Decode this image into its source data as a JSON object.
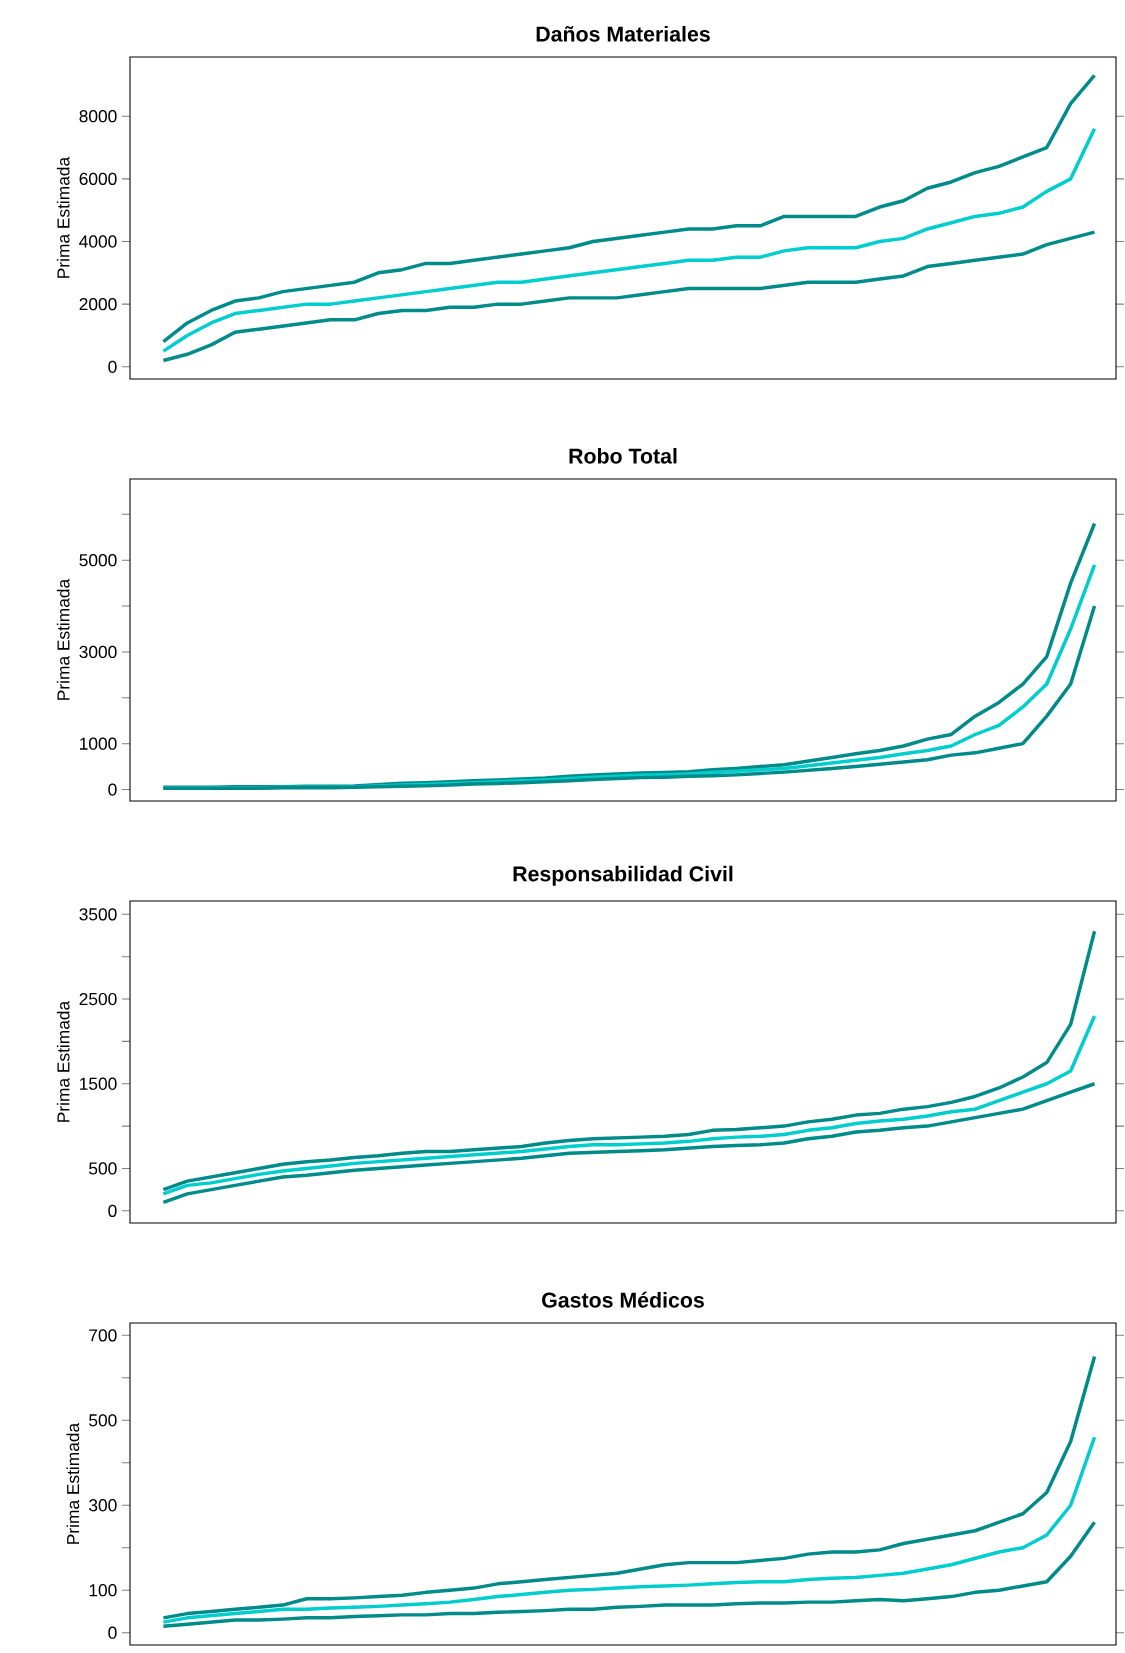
{
  "chart_data": [
    {
      "type": "line",
      "title": "Daños Materiales",
      "ylabel": "Prima Estimada",
      "tick_labels": "y",
      "categories": [
        null,
        null,
        null,
        null,
        null,
        null,
        null,
        null,
        null,
        null,
        null,
        null,
        null,
        null,
        null,
        null,
        null,
        null,
        null,
        null,
        null,
        null,
        null,
        null,
        null,
        null,
        null,
        null,
        null,
        null,
        null,
        null,
        null,
        null,
        null,
        null,
        null,
        null,
        null,
        null
      ],
      "ylim": [
        -390,
        9890
      ],
      "yticks": [
        0,
        2000,
        4000,
        6000,
        8000
      ],
      "series": [
        {
          "color": "#008b8b",
          "values": [
            800,
            1400,
            1800,
            2100,
            2200,
            2400,
            2500,
            2600,
            2700,
            3000,
            3100,
            3300,
            3300,
            3400,
            3500,
            3600,
            3700,
            3800,
            4000,
            4100,
            4200,
            4300,
            4400,
            4400,
            4500,
            4500,
            4800,
            4800,
            4800,
            4800,
            5100,
            5300,
            5700,
            5900,
            6200,
            6400,
            6700,
            7000,
            8400,
            9300
          ]
        },
        {
          "color": "#00cdcd",
          "values": [
            500,
            1000,
            1400,
            1700,
            1800,
            1900,
            2000,
            2000,
            2100,
            2200,
            2300,
            2400,
            2500,
            2600,
            2700,
            2700,
            2800,
            2900,
            3000,
            3100,
            3200,
            3300,
            3400,
            3400,
            3500,
            3500,
            3700,
            3800,
            3800,
            3800,
            4000,
            4100,
            4400,
            4600,
            4800,
            4900,
            5100,
            5600,
            6000,
            7600
          ]
        },
        {
          "color": "#008b8b",
          "values": [
            200,
            400,
            700,
            1100,
            1200,
            1300,
            1400,
            1500,
            1500,
            1700,
            1800,
            1800,
            1900,
            1900,
            2000,
            2000,
            2100,
            2200,
            2200,
            2200,
            2300,
            2400,
            2500,
            2500,
            2500,
            2500,
            2600,
            2700,
            2700,
            2700,
            2800,
            2900,
            3200,
            3300,
            3400,
            3500,
            3600,
            3900,
            4100,
            4300
          ]
        }
      ]
    },
    {
      "type": "line",
      "title": "Robo Total",
      "ylabel": "Prima Estimada",
      "tick_labels": "y",
      "categories": [
        null,
        null,
        null,
        null,
        null,
        null,
        null,
        null,
        null,
        null,
        null,
        null,
        null,
        null,
        null,
        null,
        null,
        null,
        null,
        null,
        null,
        null,
        null,
        null,
        null,
        null,
        null,
        null,
        null,
        null,
        null,
        null,
        null,
        null,
        null,
        null,
        null,
        null,
        null,
        null
      ],
      "ylim": [
        -250,
        6770
      ],
      "yticks": [
        0,
        1000,
        {
          "value": 2000,
          "label": null
        },
        3000,
        {
          "value": 4000,
          "label": null
        },
        5000,
        {
          "value": 6000,
          "label": null
        }
      ],
      "series": [
        {
          "color": "#008b8b",
          "values": [
            50,
            50,
            50,
            60,
            60,
            60,
            70,
            70,
            80,
            110,
            140,
            150,
            170,
            190,
            210,
            230,
            250,
            290,
            320,
            340,
            360,
            370,
            390,
            430,
            460,
            500,
            540,
            620,
            700,
            780,
            850,
            950,
            1100,
            1200,
            1600,
            1900,
            2300,
            2900,
            4500,
            5800
          ]
        },
        {
          "color": "#00cdcd",
          "values": [
            40,
            40,
            40,
            40,
            40,
            50,
            50,
            50,
            60,
            80,
            100,
            110,
            130,
            150,
            170,
            190,
            210,
            240,
            270,
            290,
            310,
            320,
            340,
            370,
            400,
            430,
            460,
            520,
            580,
            640,
            700,
            780,
            850,
            950,
            1200,
            1400,
            1800,
            2300,
            3500,
            4900
          ]
        },
        {
          "color": "#008b8b",
          "values": [
            30,
            30,
            30,
            30,
            30,
            40,
            40,
            40,
            50,
            60,
            70,
            80,
            100,
            120,
            130,
            150,
            170,
            190,
            220,
            240,
            260,
            270,
            290,
            300,
            320,
            350,
            380,
            420,
            460,
            500,
            550,
            600,
            650,
            750,
            800,
            900,
            1000,
            1600,
            2300,
            4000
          ]
        }
      ]
    },
    {
      "type": "line",
      "title": "Responsabilidad Civil",
      "ylabel": "Prima Estimada",
      "tick_labels": "y",
      "categories": [
        null,
        null,
        null,
        null,
        null,
        null,
        null,
        null,
        null,
        null,
        null,
        null,
        null,
        null,
        null,
        null,
        null,
        null,
        null,
        null,
        null,
        null,
        null,
        null,
        null,
        null,
        null,
        null,
        null,
        null,
        null,
        null,
        null,
        null,
        null,
        null,
        null,
        null,
        null,
        null
      ],
      "ylim": [
        -144,
        3657
      ],
      "yticks": [
        0,
        500,
        {
          "value": 1000,
          "label": null
        },
        1500,
        {
          "value": 2000,
          "label": null
        },
        2500,
        {
          "value": 3000,
          "label": null
        },
        3500
      ],
      "series": [
        {
          "color": "#008b8b",
          "values": [
            250,
            350,
            400,
            450,
            500,
            550,
            580,
            600,
            630,
            650,
            680,
            700,
            700,
            720,
            740,
            760,
            800,
            830,
            850,
            860,
            870,
            880,
            900,
            950,
            960,
            980,
            1000,
            1050,
            1080,
            1130,
            1150,
            1200,
            1230,
            1280,
            1350,
            1450,
            1580,
            1750,
            2200,
            3300
          ]
        },
        {
          "color": "#00cdcd",
          "values": [
            200,
            300,
            330,
            380,
            430,
            470,
            500,
            530,
            560,
            580,
            600,
            620,
            640,
            660,
            680,
            700,
            730,
            760,
            780,
            780,
            790,
            800,
            820,
            850,
            870,
            880,
            900,
            950,
            980,
            1030,
            1060,
            1080,
            1120,
            1170,
            1200,
            1300,
            1400,
            1500,
            1650,
            2300
          ]
        },
        {
          "color": "#008b8b",
          "values": [
            100,
            200,
            250,
            300,
            350,
            400,
            420,
            450,
            480,
            500,
            520,
            540,
            560,
            580,
            600,
            620,
            650,
            680,
            690,
            700,
            710,
            720,
            740,
            760,
            770,
            780,
            800,
            850,
            880,
            930,
            950,
            980,
            1000,
            1050,
            1100,
            1150,
            1200,
            1300,
            1400,
            1500
          ]
        }
      ]
    },
    {
      "type": "line",
      "title": "Gastos Médicos",
      "ylabel": "Prima Estimada",
      "tick_labels": "y",
      "categories": [
        null,
        null,
        null,
        null,
        null,
        null,
        null,
        null,
        null,
        null,
        null,
        null,
        null,
        null,
        null,
        null,
        null,
        null,
        null,
        null,
        null,
        null,
        null,
        null,
        null,
        null,
        null,
        null,
        null,
        null,
        null,
        null,
        null,
        null,
        null,
        null,
        null,
        null,
        null,
        null
      ],
      "ylim": [
        -29,
        729
      ],
      "yticks": [
        0,
        100,
        {
          "value": 200,
          "label": null
        },
        300,
        {
          "value": 400,
          "label": null
        },
        500,
        {
          "value": 600,
          "label": null
        },
        700
      ],
      "series": [
        {
          "color": "#008b8b",
          "values": [
            35,
            45,
            50,
            55,
            60,
            65,
            80,
            80,
            82,
            85,
            88,
            95,
            100,
            105,
            115,
            120,
            125,
            130,
            135,
            140,
            150,
            160,
            165,
            165,
            165,
            170,
            175,
            185,
            190,
            190,
            195,
            210,
            220,
            230,
            240,
            260,
            280,
            330,
            450,
            650
          ]
        },
        {
          "color": "#00cdcd",
          "values": [
            25,
            35,
            40,
            45,
            50,
            55,
            55,
            58,
            60,
            62,
            65,
            68,
            72,
            78,
            85,
            90,
            95,
            100,
            102,
            105,
            108,
            110,
            112,
            115,
            118,
            120,
            120,
            125,
            128,
            130,
            135,
            140,
            150,
            160,
            175,
            190,
            200,
            230,
            300,
            460
          ]
        },
        {
          "color": "#008b8b",
          "values": [
            15,
            20,
            25,
            30,
            30,
            32,
            35,
            35,
            38,
            40,
            42,
            42,
            45,
            45,
            48,
            50,
            52,
            55,
            55,
            60,
            62,
            65,
            65,
            65,
            68,
            70,
            70,
            72,
            72,
            75,
            78,
            75,
            80,
            85,
            95,
            100,
            110,
            120,
            180,
            260
          ]
        }
      ]
    }
  ]
}
